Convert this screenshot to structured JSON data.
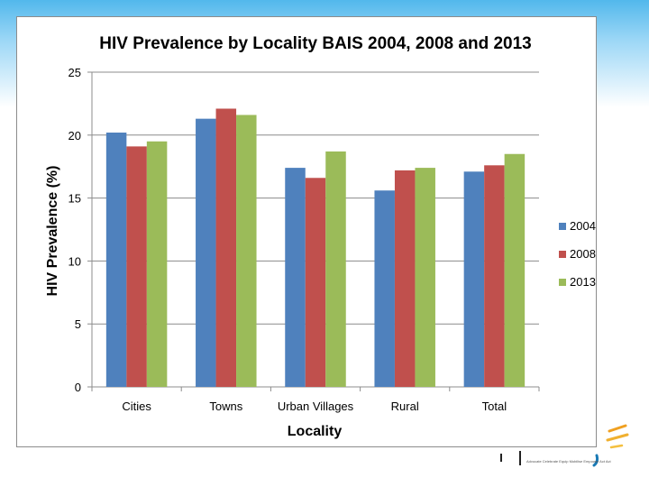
{
  "slide": {
    "accent_color": "#52b8ec",
    "logo_tagline": "Advocate Celebrate Equip Mobilise Empower Act Act"
  },
  "chart_data": {
    "type": "bar",
    "title": "HIV Prevalence by Locality BAIS 2004, 2008 and 2013",
    "xlabel": "Locality",
    "ylabel": "HIV Prevalence (%)",
    "ylim": [
      0,
      25
    ],
    "yticks": [
      0,
      5,
      10,
      15,
      20,
      25
    ],
    "grid": true,
    "legend_position": "right",
    "categories": [
      "Cities",
      "Towns",
      "Urban Villages",
      "Rural",
      "Total"
    ],
    "series": [
      {
        "name": "2004",
        "color": "#4f81bd",
        "values": [
          20.2,
          21.3,
          17.4,
          15.6,
          17.1
        ]
      },
      {
        "name": "2008",
        "color": "#c0504d",
        "values": [
          19.1,
          22.1,
          16.6,
          17.2,
          17.6
        ]
      },
      {
        "name": "2013",
        "color": "#9bbb59",
        "values": [
          19.5,
          21.6,
          18.7,
          17.4,
          18.5
        ]
      }
    ]
  }
}
